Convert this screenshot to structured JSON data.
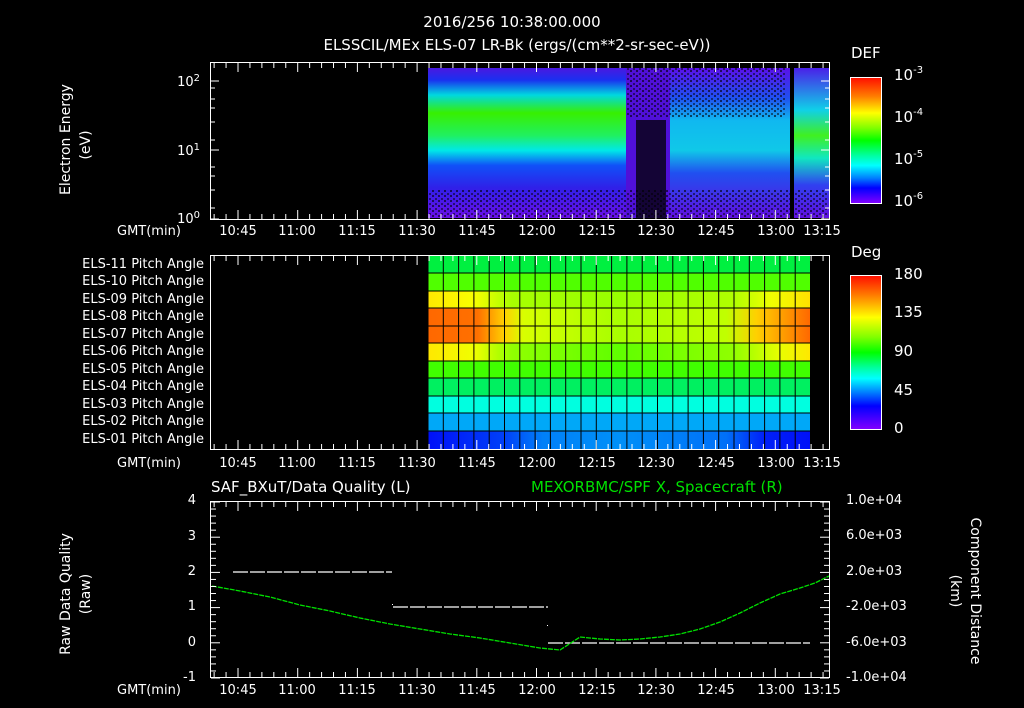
{
  "header": {
    "timestamp": "2016/256 10:38:00.000",
    "title": "ELSSCIL/MEx ELS-07 LR-Bk  (ergs/(cm**2-sr-sec-eV))"
  },
  "time_axis": {
    "label": "GMT(min)",
    "ticks": [
      "10:45",
      "11:00",
      "11:15",
      "11:30",
      "11:45",
      "12:00",
      "12:15",
      "12:30",
      "12:45",
      "13:00",
      "13:15"
    ]
  },
  "panel1": {
    "ylabel": "Electron Energy",
    "yunit": "(eV)",
    "yticks": [
      {
        "base": "10",
        "exp": "2"
      },
      {
        "base": "10",
        "exp": "1"
      },
      {
        "base": "10",
        "exp": "0"
      }
    ],
    "colorbar": {
      "title": "DEF",
      "ticks": [
        {
          "base": "10",
          "exp": "-3"
        },
        {
          "base": "10",
          "exp": "-4"
        },
        {
          "base": "10",
          "exp": "-5"
        },
        {
          "base": "10",
          "exp": "-6"
        }
      ]
    }
  },
  "panel2": {
    "row_labels": [
      "ELS-11 Pitch Angle",
      "ELS-10 Pitch Angle",
      "ELS-09 Pitch Angle",
      "ELS-08 Pitch Angle",
      "ELS-07 Pitch Angle",
      "ELS-06 Pitch Angle",
      "ELS-05 Pitch Angle",
      "ELS-04 Pitch Angle",
      "ELS-03 Pitch Angle",
      "ELS-02 Pitch Angle",
      "ELS-01 Pitch Angle"
    ],
    "colorbar": {
      "title": "Deg",
      "ticks": [
        "180",
        "135",
        "90",
        "45",
        "0"
      ]
    }
  },
  "panel3": {
    "left_title": "SAF_BXuT/Data Quality (L)",
    "right_title": "MEXORBMC/SPF X, Spacecraft (R)",
    "ylabel_left": "Raw Data Quality",
    "yunit_left": "(Raw)",
    "yticks_left": [
      "4",
      "3",
      "2",
      "1",
      "0",
      "-1"
    ],
    "ylabel_right": "Component Distance",
    "yunit_right": "(km)",
    "yticks_right": [
      "1.0e+04",
      "6.0e+03",
      "2.0e+03",
      "-2.0e+03",
      "-6.0e+03",
      "-1.0e+04"
    ],
    "colors": {
      "quality": "#ffffff",
      "distance": "#00e000"
    }
  },
  "chart_data": [
    {
      "type": "heatmap",
      "title": "ELSSCIL/MEx ELS-07 LR-Bk  (ergs/(cm**2-sr-sec-eV))",
      "xlabel": "GMT(min)",
      "ylabel": "Electron Energy (eV)",
      "yscale": "log",
      "ylim": [
        1,
        200
      ],
      "x_ticks": [
        "10:45",
        "11:00",
        "11:15",
        "11:30",
        "11:45",
        "12:00",
        "12:15",
        "12:30",
        "12:45",
        "13:00",
        "13:15"
      ],
      "data_start": "11:36",
      "colorbar": {
        "label": "DEF",
        "scale": "log",
        "range": [
          1e-06,
          0.001
        ]
      },
      "features": [
        {
          "time_range": [
            "11:36",
            "12:26"
          ],
          "energy_band_eV": [
            8,
            40
          ],
          "level": "~1e-4 (green)"
        },
        {
          "time_range": [
            "12:26",
            "12:37"
          ],
          "energy_band_eV": [
            1,
            200
          ],
          "level": "sparse/no data"
        },
        {
          "time_range": [
            "12:37",
            "13:05"
          ],
          "energy_band_eV": [
            5,
            50
          ],
          "level": "~1e-5 (cyan/blue)"
        },
        {
          "time_range": [
            "13:07",
            "13:17"
          ],
          "energy_band_eV": [
            5,
            40
          ],
          "level": "~5e-5 (green/cyan)"
        }
      ]
    },
    {
      "type": "heatmap",
      "title": "Pitch Angle",
      "xlabel": "GMT(min)",
      "categories": [
        "ELS-11",
        "ELS-10",
        "ELS-09",
        "ELS-08",
        "ELS-07",
        "ELS-06",
        "ELS-05",
        "ELS-04",
        "ELS-03",
        "ELS-02",
        "ELS-01"
      ],
      "data_range": [
        "11:36",
        "13:14"
      ],
      "colorbar": {
        "label": "Deg",
        "range": [
          0,
          180
        ]
      },
      "approx_values_deg": {
        "ELS-11": 95,
        "ELS-10": 110,
        "ELS-09": "135 at edges, ~120 middle",
        "ELS-08": "160 at edges, ~120 middle",
        "ELS-07": "160 at edges, ~120 middle",
        "ELS-06": "135 at edges, ~110 middle",
        "ELS-05": 100,
        "ELS-04": 90,
        "ELS-03": 65,
        "ELS-02": 45,
        "ELS-01": "30 at edges, ~40 middle"
      }
    },
    {
      "type": "line",
      "title": "SAF_BXuT/Data Quality (L) ; MEXORBMC/SPF X, Spacecraft (R)",
      "xlabel": "GMT(min)",
      "series": [
        {
          "name": "Data Quality (L)",
          "axis": "left",
          "points": [
            [
              "10:40",
              null
            ],
            [
              "10:50",
              2
            ],
            [
              "11:25",
              2
            ],
            [
              "11:26",
              1
            ],
            [
              "12:05",
              1
            ],
            [
              "12:06",
              0
            ],
            [
              "13:14",
              0
            ]
          ]
        },
        {
          "name": "SPF X (R, km)",
          "axis": "right",
          "points": [
            [
              "10:37",
              -300
            ],
            [
              "10:45",
              -800
            ],
            [
              "11:00",
              -1900
            ],
            [
              "11:15",
              -3000
            ],
            [
              "11:30",
              -4000
            ],
            [
              "11:45",
              -4800
            ],
            [
              "12:00",
              -5600
            ],
            [
              "12:15",
              -6200
            ],
            [
              "12:30",
              -6300
            ],
            [
              "12:45",
              -5600
            ],
            [
              "13:00",
              -3500
            ],
            [
              "13:15",
              -300
            ]
          ]
        }
      ],
      "ylim_left": [
        -1,
        4
      ],
      "ylim_right": [
        -10000,
        10000
      ]
    }
  ]
}
